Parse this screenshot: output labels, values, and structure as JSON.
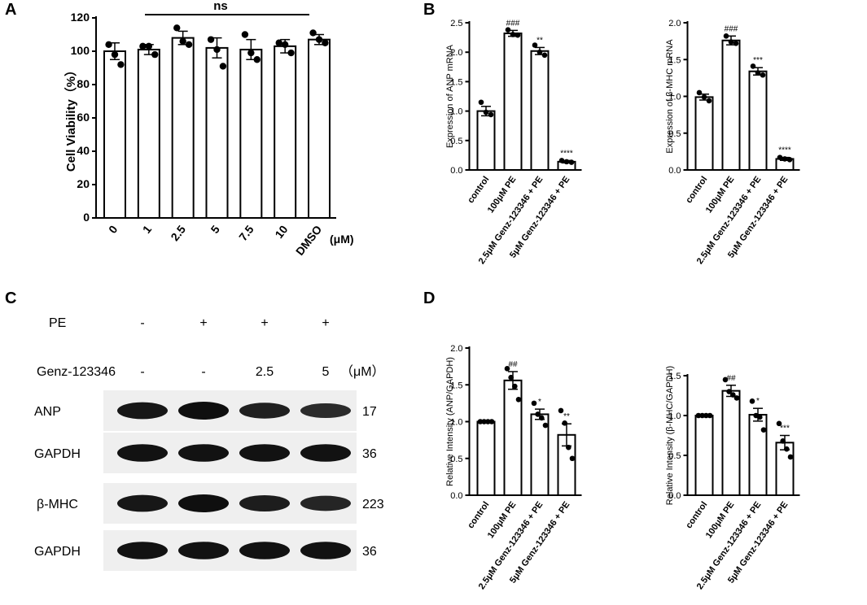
{
  "chart_data": [
    {
      "id": "A",
      "type": "bar",
      "panel_label": "A",
      "categories": [
        "0",
        "1",
        "2.5",
        "5",
        "7.5",
        "10",
        "DMSO"
      ],
      "unit_label": "(μM)",
      "values": [
        100,
        101,
        108,
        102,
        101,
        103,
        107
      ],
      "errors": [
        5,
        3,
        4,
        6,
        6,
        4,
        3
      ],
      "points": [
        [
          104,
          98,
          92
        ],
        [
          103,
          103,
          98
        ],
        [
          114,
          106,
          104
        ],
        [
          107,
          101,
          91
        ],
        [
          110,
          99,
          95
        ],
        [
          105,
          104,
          99
        ],
        [
          111,
          107,
          105
        ]
      ],
      "ylabel": "Cell Viability（%）",
      "ylim": [
        0,
        120
      ],
      "yticks": [
        0,
        20,
        40,
        60,
        80,
        100,
        120
      ],
      "annotation": "ns",
      "sig": [
        "",
        "",
        "",
        "",
        "",
        "",
        ""
      ]
    },
    {
      "id": "B1",
      "type": "bar",
      "panel_label": "B",
      "categories": [
        "control",
        "100μM PE",
        "2.5μM Genz-123346 + PE",
        "5μM Genz-123346 + PE"
      ],
      "values": [
        1.0,
        2.32,
        2.02,
        0.14
      ],
      "errors": [
        0.08,
        0.05,
        0.06,
        0.02
      ],
      "points": [
        [
          1.15,
          0.98,
          0.94
        ],
        [
          2.38,
          2.3,
          2.29
        ],
        [
          2.12,
          2.0,
          1.95
        ],
        [
          0.16,
          0.14,
          0.13
        ]
      ],
      "ylabel": "Expression of ANP mRNA",
      "ylim": [
        0,
        2.5
      ],
      "yticks": [
        0.0,
        0.5,
        1.0,
        1.5,
        2.0,
        2.5
      ],
      "sig": [
        "",
        "###",
        "**",
        "****"
      ]
    },
    {
      "id": "B2",
      "type": "bar",
      "panel_label": "",
      "categories": [
        "control",
        "100μM PE",
        "2.5μM Genz-123346 + PE",
        "5μM Genz-123346 + PE"
      ],
      "values": [
        0.99,
        1.76,
        1.34,
        0.15
      ],
      "errors": [
        0.04,
        0.06,
        0.05,
        0.02
      ],
      "points": [
        [
          1.05,
          0.99,
          0.94
        ],
        [
          1.82,
          1.74,
          1.72
        ],
        [
          1.41,
          1.32,
          1.29
        ],
        [
          0.17,
          0.15,
          0.14
        ]
      ],
      "ylabel": "Expression of β-MHC mRNA",
      "ylim": [
        0,
        2.0
      ],
      "yticks": [
        0.0,
        0.5,
        1.0,
        1.5,
        2.0
      ],
      "sig": [
        "",
        "###",
        "***",
        "****"
      ]
    },
    {
      "id": "D1",
      "type": "bar",
      "panel_label": "D",
      "categories": [
        "control",
        "100μM PE",
        "2.5μM Genz-123346 + PE",
        "5μM Genz-123346 + PE"
      ],
      "values": [
        1.0,
        1.56,
        1.1,
        0.82
      ],
      "errors": [
        0.0,
        0.12,
        0.07,
        0.15
      ],
      "points": [
        [
          1.0,
          1.0,
          1.0,
          1.0
        ],
        [
          1.72,
          1.6,
          1.48,
          1.3
        ],
        [
          1.25,
          1.1,
          1.05,
          0.95
        ],
        [
          1.15,
          0.98,
          0.65,
          0.5
        ]
      ],
      "ylabel": "Relative Intensity (ANP/GAPDH)",
      "ylim": [
        0,
        2.0
      ],
      "yticks": [
        0.0,
        0.5,
        1.0,
        1.5,
        2.0
      ],
      "sig": [
        "",
        "##",
        "*",
        "**"
      ]
    },
    {
      "id": "D2",
      "type": "bar",
      "panel_label": "",
      "categories": [
        "control",
        "100μM PE",
        "2.5μM Genz-123346 + PE",
        "5μM Genz-123346 + PE"
      ],
      "values": [
        1.0,
        1.31,
        1.01,
        0.66
      ],
      "errors": [
        0.0,
        0.07,
        0.08,
        0.09
      ],
      "points": [
        [
          1.0,
          1.0,
          1.0,
          1.0
        ],
        [
          1.45,
          1.3,
          1.26,
          1.22
        ],
        [
          1.18,
          1.0,
          0.98,
          0.82
        ],
        [
          0.9,
          0.68,
          0.58,
          0.48
        ]
      ],
      "ylabel": "Relative Intensity (β-MHC/GAPDH)",
      "ylim": [
        0,
        1.5
      ],
      "yticks": [
        0.0,
        0.5,
        1.0,
        1.5
      ],
      "sig": [
        "",
        "##",
        "*",
        "***"
      ]
    }
  ],
  "blot": {
    "panel_label": "C",
    "condition_rows": [
      {
        "name": "PE",
        "values": [
          "-",
          "+",
          "+",
          "+"
        ],
        "unit": ""
      },
      {
        "name": "Genz-123346",
        "values": [
          "-",
          "-",
          "2.5",
          "5"
        ],
        "unit": "（μM）"
      }
    ],
    "bands": [
      {
        "name": "ANP",
        "kda": "17",
        "intensity": [
          0.85,
          1.0,
          0.7,
          0.5
        ]
      },
      {
        "name": "GAPDH",
        "kda": "36",
        "intensity": [
          0.95,
          0.95,
          0.95,
          0.95
        ]
      },
      {
        "name": "β-MHC",
        "kda": "223",
        "intensity": [
          0.85,
          1.0,
          0.75,
          0.6
        ]
      },
      {
        "name": "GAPDH",
        "kda": "36",
        "intensity": [
          0.95,
          0.95,
          0.95,
          0.95
        ]
      }
    ]
  }
}
